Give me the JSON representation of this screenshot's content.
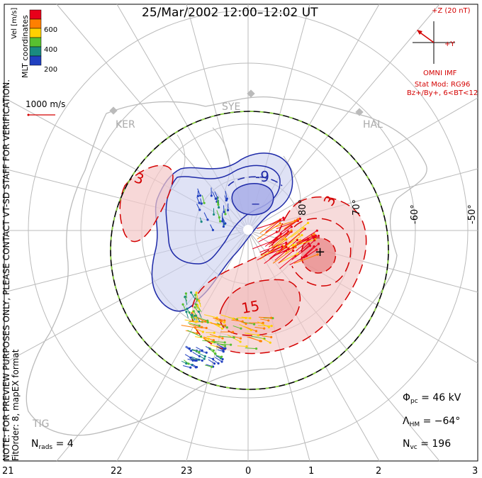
{
  "title": "25/Mar/2002 12:00–12:02 UT",
  "imf": {
    "z_label": "+Z (20 nT)",
    "y_label": "+Y",
    "label": "OMNI IMF",
    "model_line1": "Stat Mod: RG96",
    "model_line2": "Bz+/By+, 6<BT<12"
  },
  "colorbar": {
    "unit": "Vel [m/s]",
    "ticks": [
      "600",
      "400",
      "200"
    ],
    "colors": [
      "#e8001a",
      "#ff7f00",
      "#ffd000",
      "#58c030",
      "#1a8a80",
      "#2040c0"
    ]
  },
  "scale": {
    "label": "1000 m/s",
    "color": "#d40000"
  },
  "side_note": {
    "line1": "NOTE: FOR PREVIEW PURPOSES ONLY, PLEASE CONTACT VT-SD STAFF FOR VERIFICATION.",
    "line2": "FitOrder: 8, mapEX format",
    "right": "MLT coordinates"
  },
  "stats": {
    "nrads_sym": "N",
    "nrads_sub": "rads",
    "nrads_val": "= 4",
    "phipc_sym": "Φ",
    "phipc_sub": "pc",
    "phipc_val": "= 46 kV",
    "lamhm_sym": "Λ",
    "lamhm_sub": "HM",
    "lamhm_val": "= −64°",
    "nvc_sym": "N",
    "nvc_sub": "vc",
    "nvc_val": "= 196"
  },
  "mlt_labels": [
    "21",
    "22",
    "23",
    "0",
    "1",
    "2",
    "3"
  ],
  "lat_labels": [
    "-50°",
    "-60°",
    "70°",
    "80°"
  ],
  "stations": [
    "KER",
    "SYE",
    "HAL",
    "TIG"
  ],
  "contours": {
    "neg": [
      "-9"
    ],
    "pos": [
      "3",
      "3",
      "15"
    ],
    "min_symbol": "−",
    "max_symbol": "+"
  },
  "chart_data": {
    "type": "map",
    "colors": {
      "negative": "#1e2aa8",
      "positive": "#d40000",
      "boundary": "#000000",
      "boundary_dash": "#8bd83a"
    }
  }
}
